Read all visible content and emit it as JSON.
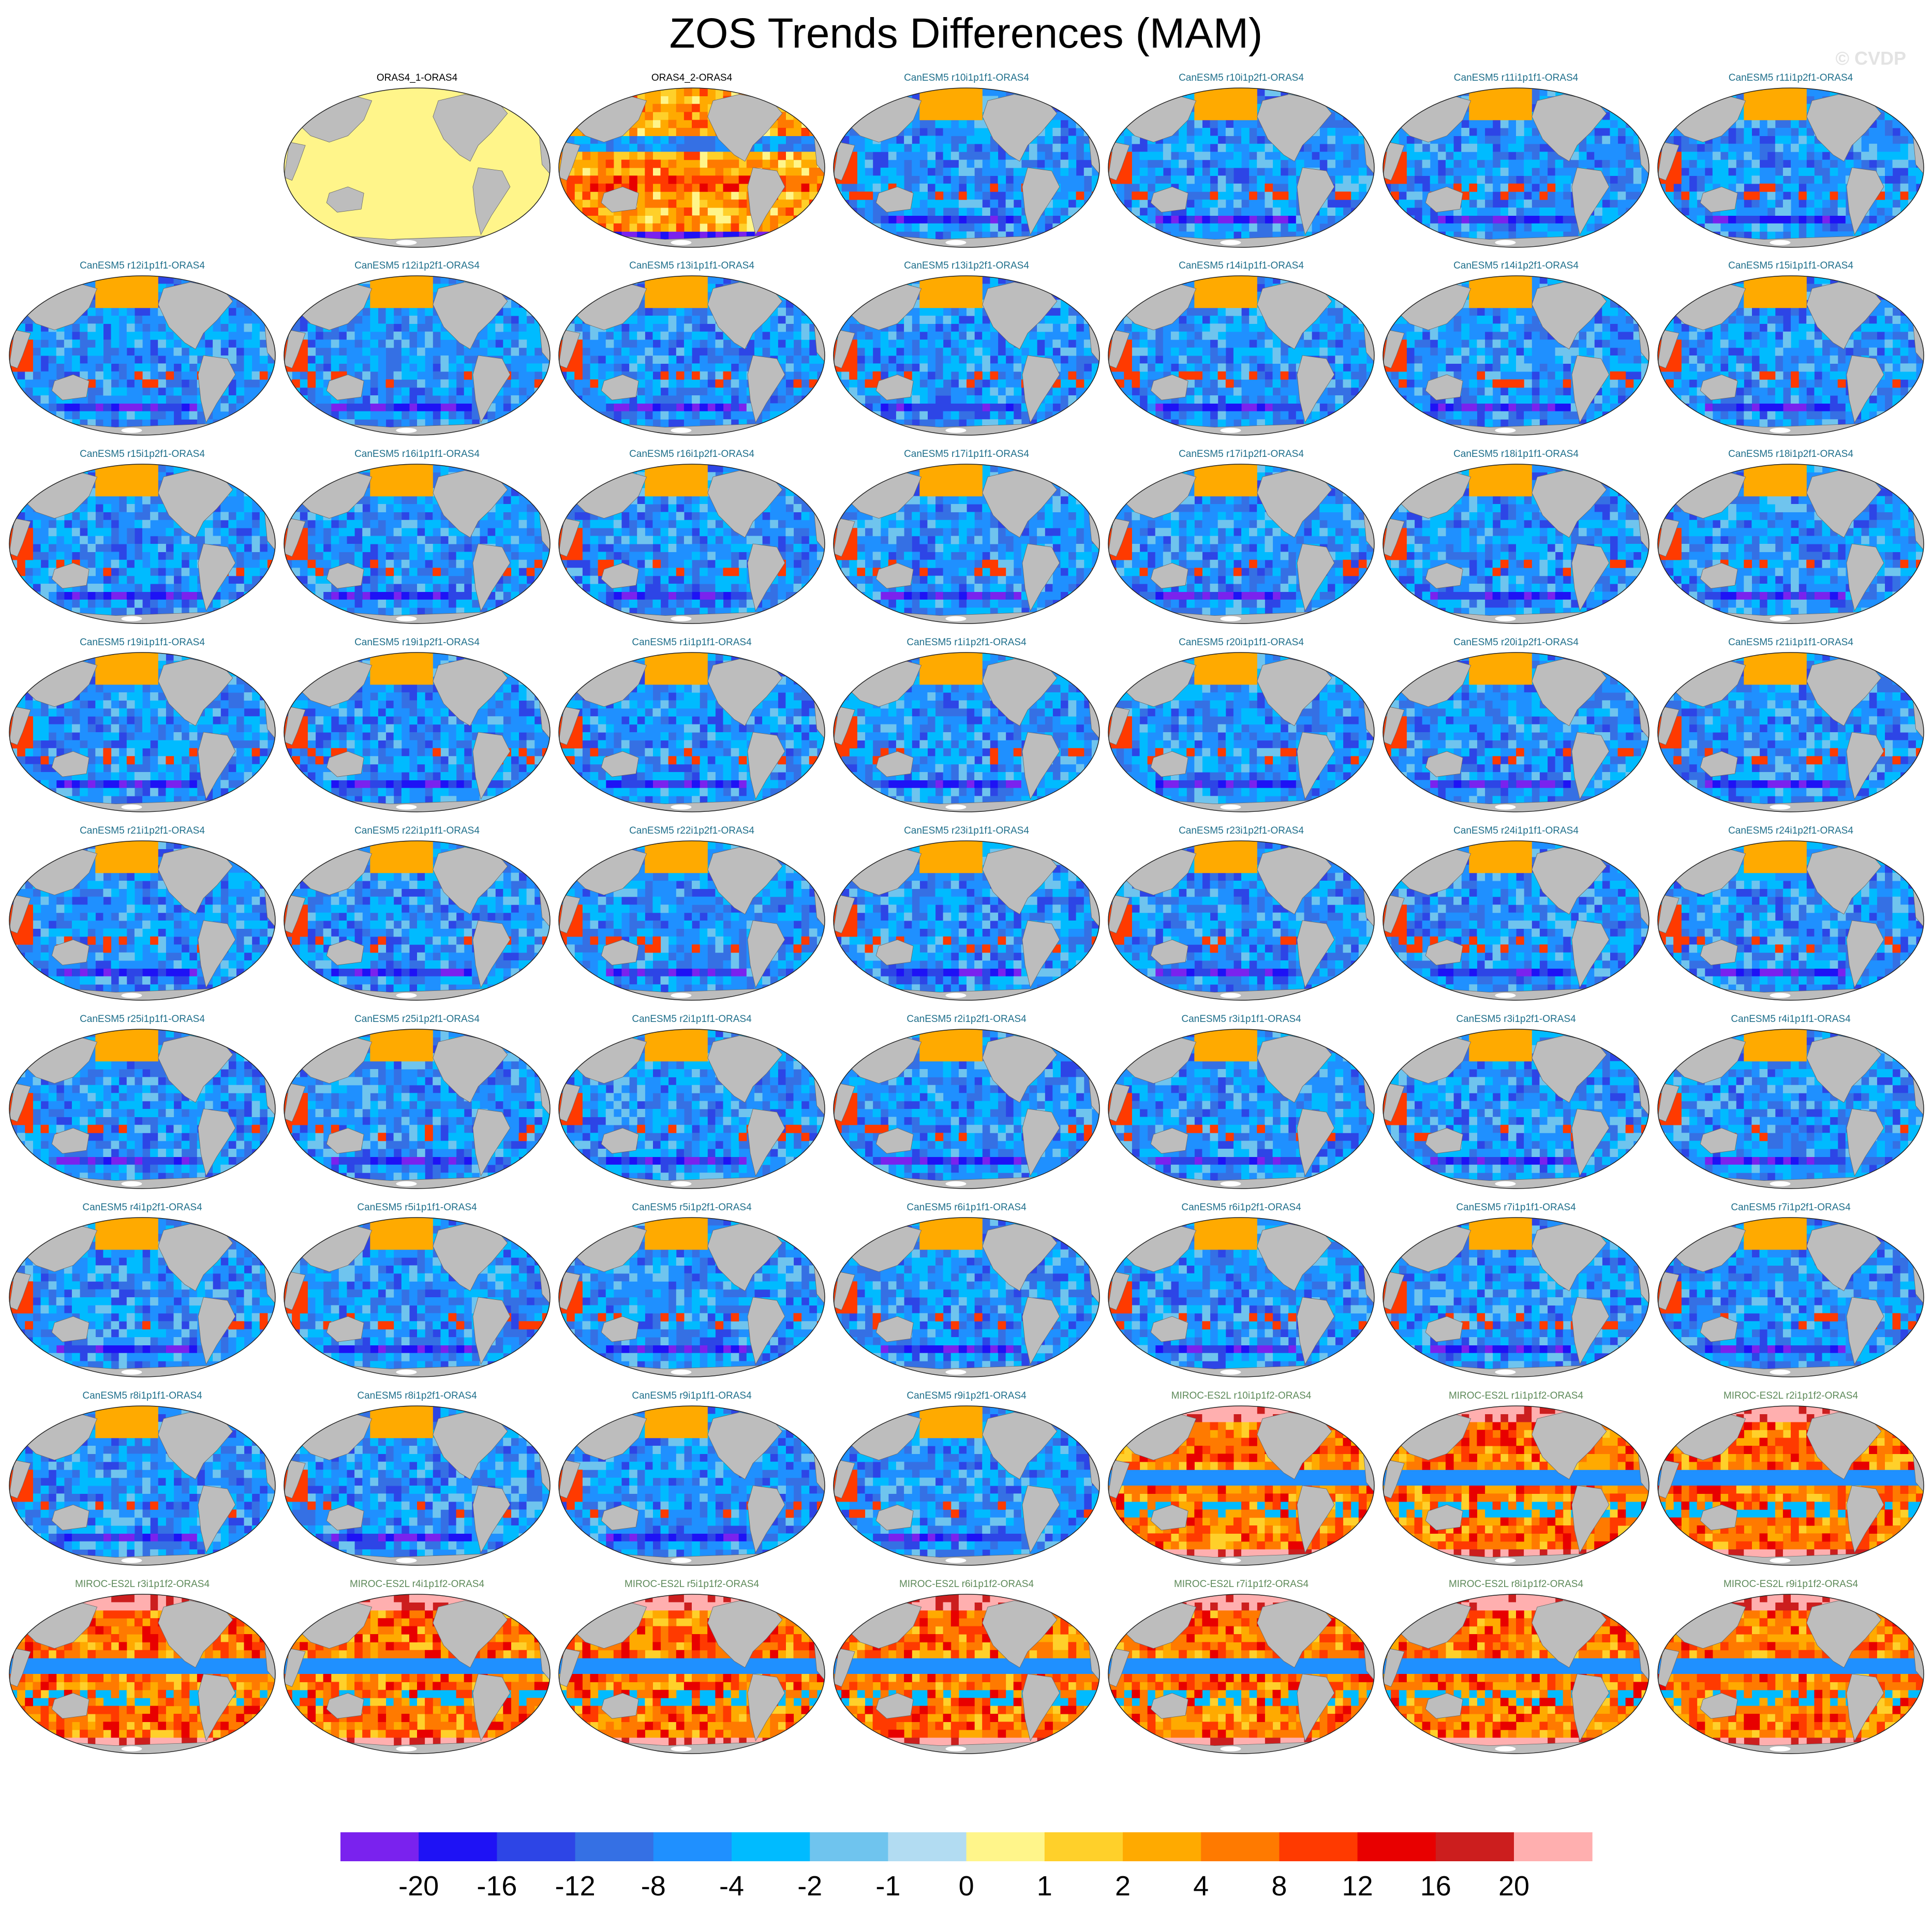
{
  "title": "ZOS Trends Differences (MAM)",
  "watermark": "© CVDP",
  "grid": {
    "columns": 7,
    "rows": 9,
    "first_row_empty_slots": 1
  },
  "colors": {
    "land": "#bdbdbd",
    "obs_label": "#000000",
    "canesm_label": "#1f6f8b",
    "miroc_label": "#5e8a5a",
    "identical_fill": "#fff58a"
  },
  "panels": [
    {
      "label": "ORAS4_1-ORAS4",
      "group": "obs",
      "pattern": "zero"
    },
    {
      "label": "ORAS4_2-ORAS4",
      "group": "obs",
      "pattern": "obs"
    },
    {
      "label": "CanESM5 r10i1p1f1-ORAS4",
      "group": "canesm",
      "pattern": "canesm"
    },
    {
      "label": "CanESM5 r10i1p2f1-ORAS4",
      "group": "canesm",
      "pattern": "canesm"
    },
    {
      "label": "CanESM5 r11i1p1f1-ORAS4",
      "group": "canesm",
      "pattern": "canesm"
    },
    {
      "label": "CanESM5 r11i1p2f1-ORAS4",
      "group": "canesm",
      "pattern": "canesm"
    },
    {
      "label": "CanESM5 r12i1p1f1-ORAS4",
      "group": "canesm",
      "pattern": "canesm"
    },
    {
      "label": "CanESM5 r12i1p2f1-ORAS4",
      "group": "canesm",
      "pattern": "canesm"
    },
    {
      "label": "CanESM5 r13i1p1f1-ORAS4",
      "group": "canesm",
      "pattern": "canesm"
    },
    {
      "label": "CanESM5 r13i1p2f1-ORAS4",
      "group": "canesm",
      "pattern": "canesm"
    },
    {
      "label": "CanESM5 r14i1p1f1-ORAS4",
      "group": "canesm",
      "pattern": "canesm"
    },
    {
      "label": "CanESM5 r14i1p2f1-ORAS4",
      "group": "canesm",
      "pattern": "canesm"
    },
    {
      "label": "CanESM5 r15i1p1f1-ORAS4",
      "group": "canesm",
      "pattern": "canesm"
    },
    {
      "label": "CanESM5 r15i1p2f1-ORAS4",
      "group": "canesm",
      "pattern": "canesm"
    },
    {
      "label": "CanESM5 r16i1p1f1-ORAS4",
      "group": "canesm",
      "pattern": "canesm"
    },
    {
      "label": "CanESM5 r16i1p2f1-ORAS4",
      "group": "canesm",
      "pattern": "canesm"
    },
    {
      "label": "CanESM5 r17i1p1f1-ORAS4",
      "group": "canesm",
      "pattern": "canesm"
    },
    {
      "label": "CanESM5 r17i1p2f1-ORAS4",
      "group": "canesm",
      "pattern": "canesm"
    },
    {
      "label": "CanESM5 r18i1p1f1-ORAS4",
      "group": "canesm",
      "pattern": "canesm"
    },
    {
      "label": "CanESM5 r18i1p2f1-ORAS4",
      "group": "canesm",
      "pattern": "canesm"
    },
    {
      "label": "CanESM5 r19i1p1f1-ORAS4",
      "group": "canesm",
      "pattern": "canesm"
    },
    {
      "label": "CanESM5 r19i1p2f1-ORAS4",
      "group": "canesm",
      "pattern": "canesm"
    },
    {
      "label": "CanESM5 r1i1p1f1-ORAS4",
      "group": "canesm",
      "pattern": "canesm"
    },
    {
      "label": "CanESM5 r1i1p2f1-ORAS4",
      "group": "canesm",
      "pattern": "canesm"
    },
    {
      "label": "CanESM5 r20i1p1f1-ORAS4",
      "group": "canesm",
      "pattern": "canesm"
    },
    {
      "label": "CanESM5 r20i1p2f1-ORAS4",
      "group": "canesm",
      "pattern": "canesm"
    },
    {
      "label": "CanESM5 r21i1p1f1-ORAS4",
      "group": "canesm",
      "pattern": "canesm"
    },
    {
      "label": "CanESM5 r21i1p2f1-ORAS4",
      "group": "canesm",
      "pattern": "canesm"
    },
    {
      "label": "CanESM5 r22i1p1f1-ORAS4",
      "group": "canesm",
      "pattern": "canesm"
    },
    {
      "label": "CanESM5 r22i1p2f1-ORAS4",
      "group": "canesm",
      "pattern": "canesm"
    },
    {
      "label": "CanESM5 r23i1p1f1-ORAS4",
      "group": "canesm",
      "pattern": "canesm"
    },
    {
      "label": "CanESM5 r23i1p2f1-ORAS4",
      "group": "canesm",
      "pattern": "canesm"
    },
    {
      "label": "CanESM5 r24i1p1f1-ORAS4",
      "group": "canesm",
      "pattern": "canesm"
    },
    {
      "label": "CanESM5 r24i1p2f1-ORAS4",
      "group": "canesm",
      "pattern": "canesm"
    },
    {
      "label": "CanESM5 r25i1p1f1-ORAS4",
      "group": "canesm",
      "pattern": "canesm"
    },
    {
      "label": "CanESM5 r25i1p2f1-ORAS4",
      "group": "canesm",
      "pattern": "canesm"
    },
    {
      "label": "CanESM5 r2i1p1f1-ORAS4",
      "group": "canesm",
      "pattern": "canesm"
    },
    {
      "label": "CanESM5 r2i1p2f1-ORAS4",
      "group": "canesm",
      "pattern": "canesm"
    },
    {
      "label": "CanESM5 r3i1p1f1-ORAS4",
      "group": "canesm",
      "pattern": "canesm"
    },
    {
      "label": "CanESM5 r3i1p2f1-ORAS4",
      "group": "canesm",
      "pattern": "canesm"
    },
    {
      "label": "CanESM5 r4i1p1f1-ORAS4",
      "group": "canesm",
      "pattern": "canesm"
    },
    {
      "label": "CanESM5 r4i1p2f1-ORAS4",
      "group": "canesm",
      "pattern": "canesm"
    },
    {
      "label": "CanESM5 r5i1p1f1-ORAS4",
      "group": "canesm",
      "pattern": "canesm"
    },
    {
      "label": "CanESM5 r5i1p2f1-ORAS4",
      "group": "canesm",
      "pattern": "canesm"
    },
    {
      "label": "CanESM5 r6i1p1f1-ORAS4",
      "group": "canesm",
      "pattern": "canesm"
    },
    {
      "label": "CanESM5 r6i1p2f1-ORAS4",
      "group": "canesm",
      "pattern": "canesm"
    },
    {
      "label": "CanESM5 r7i1p1f1-ORAS4",
      "group": "canesm",
      "pattern": "canesm"
    },
    {
      "label": "CanESM5 r7i1p2f1-ORAS4",
      "group": "canesm",
      "pattern": "canesm"
    },
    {
      "label": "CanESM5 r8i1p1f1-ORAS4",
      "group": "canesm",
      "pattern": "canesm"
    },
    {
      "label": "CanESM5 r8i1p2f1-ORAS4",
      "group": "canesm",
      "pattern": "canesm"
    },
    {
      "label": "CanESM5 r9i1p1f1-ORAS4",
      "group": "canesm",
      "pattern": "canesm"
    },
    {
      "label": "CanESM5 r9i1p2f1-ORAS4",
      "group": "canesm",
      "pattern": "canesm"
    },
    {
      "label": "MIROC-ES2L r10i1p1f2-ORAS4",
      "group": "miroc",
      "pattern": "miroc"
    },
    {
      "label": "MIROC-ES2L r1i1p1f2-ORAS4",
      "group": "miroc",
      "pattern": "miroc"
    },
    {
      "label": "MIROC-ES2L r2i1p1f2-ORAS4",
      "group": "miroc",
      "pattern": "miroc"
    },
    {
      "label": "MIROC-ES2L r3i1p1f2-ORAS4",
      "group": "miroc",
      "pattern": "miroc"
    },
    {
      "label": "MIROC-ES2L r4i1p1f2-ORAS4",
      "group": "miroc",
      "pattern": "miroc"
    },
    {
      "label": "MIROC-ES2L r5i1p1f2-ORAS4",
      "group": "miroc",
      "pattern": "miroc"
    },
    {
      "label": "MIROC-ES2L r6i1p1f2-ORAS4",
      "group": "miroc",
      "pattern": "miroc"
    },
    {
      "label": "MIROC-ES2L r7i1p1f2-ORAS4",
      "group": "miroc",
      "pattern": "miroc"
    },
    {
      "label": "MIROC-ES2L r8i1p1f2-ORAS4",
      "group": "miroc",
      "pattern": "miroc"
    },
    {
      "label": "MIROC-ES2L r9i1p1f2-ORAS4",
      "group": "miroc",
      "pattern": "miroc"
    }
  ],
  "colorbar": {
    "ticks": [
      "-20",
      "-16",
      "-12",
      "-8",
      "-4",
      "-2",
      "-1",
      "0",
      "1",
      "2",
      "4",
      "8",
      "12",
      "16",
      "20"
    ],
    "colors": [
      "#7a22ee",
      "#1e12f5",
      "#2d45e6",
      "#3570e4",
      "#1f90ff",
      "#00bbff",
      "#6fc4ee",
      "#b2dcf2",
      "#fff58a",
      "#ffd02a",
      "#ffaa00",
      "#ff7a00",
      "#ff3a00",
      "#e80000",
      "#cc1e1e",
      "#ffafaf"
    ]
  }
}
